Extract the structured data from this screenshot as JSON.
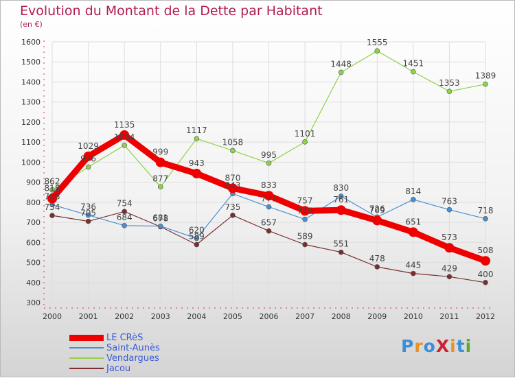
{
  "header": {
    "title": "Evolution du Montant de la Dette par Habitant",
    "subtitle": "(en €)"
  },
  "logo": {
    "text": "ProXiti",
    "colors": [
      "#3a8fd8",
      "#e8902a",
      "#3a8fd8",
      "#cc2233",
      "#e8902a",
      "#3a8fd8",
      "#5aaa2a"
    ]
  },
  "chart_data": {
    "type": "line",
    "title": "Evolution du Montant de la Dette par Habitant",
    "subtitle": "(en €)",
    "xlabel": "",
    "ylabel": "",
    "categories": [
      "2000",
      "2001",
      "2002",
      "2003",
      "2004",
      "2005",
      "2006",
      "2007",
      "2008",
      "2009",
      "2010",
      "2011",
      "2012"
    ],
    "y_ticks": [
      "300",
      "400",
      "500",
      "600",
      "700",
      "800",
      "900",
      "1000",
      "1100",
      "1200",
      "1300",
      "1400",
      "1500",
      "1600"
    ],
    "ylim": [
      300,
      1600
    ],
    "grid": true,
    "legend_position": "bottom-left",
    "series": [
      {
        "name": "LE CRèS",
        "color": "#ee0000",
        "width": 9,
        "marker": 7,
        "values": [
          818,
          1029,
          1135,
          999,
          943,
          870,
          833,
          757,
          761,
          709,
          651,
          573,
          508
        ],
        "labels": [
          "818",
          "1029",
          "1135",
          "999",
          "943",
          "870",
          "833",
          "757",
          "761",
          "709",
          "651",
          "573",
          "508"
        ]
      },
      {
        "name": "Saint-Aunès",
        "color": "#4a8fd0",
        "width": 1.2,
        "marker": 3.5,
        "values": [
          788,
          736,
          684,
          681,
          620,
          843,
          777,
          715,
          830,
          726,
          814,
          763,
          718
        ],
        "labels": [
          "788",
          "736",
          "684",
          "681",
          "620",
          "843",
          "777",
          "715",
          "830",
          "726",
          "814",
          "763",
          "718"
        ]
      },
      {
        "name": "Vendargues",
        "color": "#8ed14a",
        "width": 1.2,
        "marker": 3.5,
        "values": [
          862,
          976,
          1084,
          877,
          1117,
          1058,
          995,
          1101,
          1448,
          1555,
          1451,
          1353,
          1389
        ],
        "labels": [
          "862",
          "976",
          "1084",
          "877",
          "1117",
          "1058",
          "995",
          "1101",
          "1448",
          "1555",
          "1451",
          "1353",
          "1389"
        ]
      },
      {
        "name": "Jacou",
        "color": "#7a2e2e",
        "width": 1.2,
        "marker": 3.5,
        "values": [
          734,
          705,
          754,
          678,
          589,
          735,
          657,
          589,
          551,
          478,
          445,
          429,
          400
        ],
        "labels": [
          "734",
          "705",
          "754",
          "678",
          "589",
          "735",
          "657",
          "589",
          "551",
          "478",
          "445",
          "429",
          "400"
        ]
      }
    ]
  }
}
